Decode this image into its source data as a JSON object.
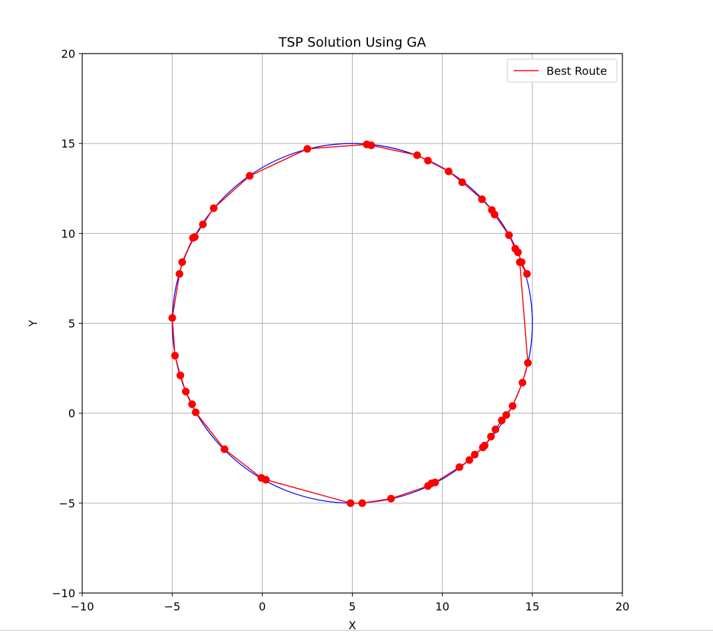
{
  "chart_data": {
    "type": "line",
    "title": "TSP Solution Using GA",
    "xlabel": "X",
    "ylabel": "Y",
    "xlim": [
      -10,
      20
    ],
    "ylim": [
      -10,
      20
    ],
    "xticks": [
      -10,
      -5,
      0,
      5,
      10,
      15,
      20
    ],
    "yticks": [
      -10,
      -5,
      0,
      5,
      10,
      15,
      20
    ],
    "xtick_labels": [
      "−10",
      "−5",
      "0",
      "5",
      "10",
      "15",
      "20"
    ],
    "ytick_labels": [
      "−10",
      "−5",
      "0",
      "5",
      "10",
      "15",
      "20"
    ],
    "grid": true,
    "legend_position": "top-right",
    "circle": {
      "center": [
        5,
        5
      ],
      "radius": 10,
      "color": "#0000ff"
    },
    "series": [
      {
        "name": "Best Route",
        "color": "#ff0000",
        "marker_color": "#ff0000",
        "closed": true,
        "x": [
          14.3,
          14.7,
          14.4,
          14.2,
          14.05,
          13.7,
          12.9,
          12.75,
          12.2,
          11.1,
          10.35,
          9.2,
          8.6,
          6.05,
          5.8,
          2.5,
          -0.7,
          -2.7,
          -3.3,
          -3.75,
          -3.85,
          -4.45,
          -4.6,
          -5.0,
          -4.85,
          -4.55,
          -4.25,
          -3.9,
          -3.7,
          -2.1,
          -0.05,
          0.2,
          4.9,
          5.55,
          7.15,
          9.2,
          9.4,
          9.6,
          10.95,
          11.5,
          11.8,
          12.25,
          12.35,
          12.7,
          12.95,
          13.3,
          13.55,
          13.9,
          14.45,
          14.75
        ],
        "y": [
          8.4,
          7.75,
          8.4,
          8.95,
          9.15,
          9.9,
          11.05,
          11.3,
          11.9,
          12.85,
          13.45,
          14.05,
          14.35,
          14.9,
          14.95,
          14.7,
          13.2,
          11.4,
          10.5,
          9.8,
          9.75,
          8.4,
          7.75,
          5.3,
          3.2,
          2.1,
          1.2,
          0.5,
          0.05,
          -2.0,
          -3.6,
          -3.7,
          -5.0,
          -5.0,
          -4.75,
          -4.05,
          -3.9,
          -3.85,
          -3.0,
          -2.6,
          -2.3,
          -1.9,
          -1.8,
          -1.3,
          -0.9,
          -0.4,
          -0.1,
          0.4,
          1.7,
          2.8
        ]
      }
    ]
  }
}
